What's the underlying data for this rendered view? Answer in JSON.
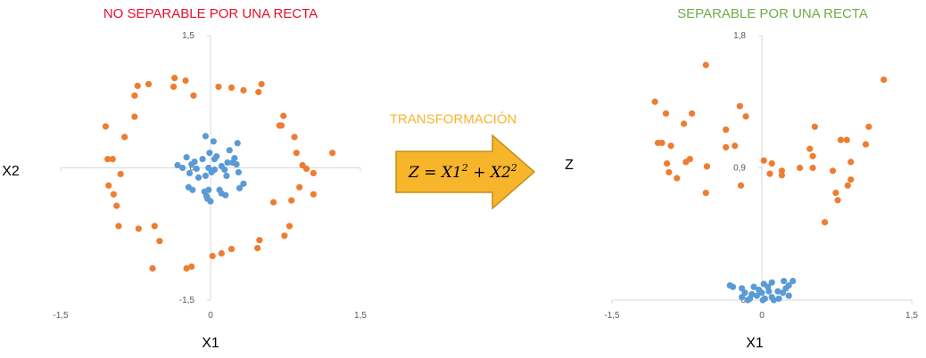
{
  "colors": {
    "title_left": "#e8102b",
    "title_right": "#70ad47",
    "title_middle": "#f7b52c",
    "series_outer": "#ed7d31",
    "series_inner": "#5b9bd5",
    "arrow_fill": "#f7b52c",
    "arrow_stroke": "#c39016",
    "axis_line": "#d9d9d9"
  },
  "arrow": {
    "title": "TRANSFORMACIÓN",
    "formula": {
      "lhs": "Z = X1",
      "exp1": "2",
      "mid": " + X2",
      "exp2": "2"
    }
  },
  "chart_data": [
    {
      "type": "scatter",
      "title": "NO SEPARABLE POR UNA RECTA",
      "xlabel": "X1",
      "ylabel": "X2",
      "xlim": [
        -1.5,
        1.5
      ],
      "ylim": [
        -1.5,
        1.5
      ],
      "x_ticks": [
        "-1,5",
        "0",
        "1,5"
      ],
      "y_ticks": [
        "-1,5",
        "0",
        "1,5"
      ],
      "x_tick_values": [
        -1.5,
        0,
        1.5
      ],
      "y_tick_values": [
        -1.5,
        0,
        1.5
      ],
      "grid": false,
      "series": [
        {
          "color": "#ed7d31",
          "points": [
            [
              -0.36,
              1.02
            ],
            [
              -0.25,
              0.99
            ],
            [
              -0.37,
              0.92
            ],
            [
              -0.73,
              0.93
            ],
            [
              -0.62,
              0.95
            ],
            [
              0.08,
              0.92
            ],
            [
              0.21,
              0.91
            ],
            [
              0.33,
              0.88
            ],
            [
              0.48,
              0.86
            ],
            [
              0.51,
              0.95
            ],
            [
              -0.76,
              0.82
            ],
            [
              -0.17,
              0.82
            ],
            [
              -0.76,
              0.58
            ],
            [
              -1.05,
              0.47
            ],
            [
              -0.86,
              0.35
            ],
            [
              0.73,
              0.59
            ],
            [
              0.69,
              0.48
            ],
            [
              0.71,
              0.48
            ],
            [
              0.84,
              0.35
            ],
            [
              0.86,
              0.17
            ],
            [
              1.22,
              0.17
            ],
            [
              -1.03,
              0.1
            ],
            [
              -0.98,
              0.1
            ],
            [
              -0.9,
              -0.07
            ],
            [
              -1.02,
              -0.2
            ],
            [
              -0.97,
              -0.3
            ],
            [
              0.92,
              0.03
            ],
            [
              0.96,
              -0.01
            ],
            [
              1.03,
              -0.06
            ],
            [
              0.89,
              -0.22
            ],
            [
              1.03,
              -0.3
            ],
            [
              -0.94,
              -0.43
            ],
            [
              -0.92,
              -0.66
            ],
            [
              -0.72,
              -0.69
            ],
            [
              -0.56,
              -0.66
            ],
            [
              -0.51,
              -0.83
            ],
            [
              0.63,
              -0.39
            ],
            [
              0.81,
              -0.37
            ],
            [
              0.79,
              -0.66
            ],
            [
              0.74,
              -0.77
            ],
            [
              0.49,
              -0.82
            ],
            [
              0.47,
              -0.91
            ],
            [
              0.21,
              -0.92
            ],
            [
              0.11,
              -0.97
            ],
            [
              0.02,
              -1.0
            ],
            [
              -0.19,
              -1.12
            ],
            [
              -0.24,
              -1.14
            ],
            [
              -0.58,
              -1.14
            ]
          ]
        },
        {
          "color": "#5b9bd5",
          "points": [
            [
              -0.05,
              0.36
            ],
            [
              0.03,
              0.3
            ],
            [
              0.27,
              0.28
            ],
            [
              0.19,
              0.2
            ],
            [
              0.06,
              0.13
            ],
            [
              0.24,
              0.11
            ],
            [
              -0.01,
              0.17
            ],
            [
              -0.08,
              0.1
            ],
            [
              0.04,
              0.1
            ],
            [
              -0.16,
              0.07
            ],
            [
              0.17,
              0.06
            ],
            [
              0.22,
              0.06
            ],
            [
              0.11,
              0.02
            ],
            [
              0.26,
              0.04
            ],
            [
              -0.33,
              0.03
            ],
            [
              -0.28,
              0.0
            ],
            [
              -0.19,
              0.04
            ],
            [
              -0.14,
              -0.01
            ],
            [
              -0.02,
              0.0
            ],
            [
              0.01,
              -0.05
            ],
            [
              0.04,
              -0.02
            ],
            [
              0.14,
              -0.02
            ],
            [
              -0.05,
              -0.09
            ],
            [
              -0.21,
              -0.06
            ],
            [
              -0.12,
              -0.11
            ],
            [
              0.16,
              -0.09
            ],
            [
              0.28,
              -0.05
            ],
            [
              0.33,
              -0.18
            ],
            [
              0.29,
              -0.23
            ],
            [
              -0.22,
              -0.22
            ],
            [
              -0.18,
              -0.25
            ],
            [
              -0.06,
              -0.27
            ],
            [
              0.09,
              -0.25
            ],
            [
              0.11,
              -0.29
            ],
            [
              0.15,
              -0.31
            ],
            [
              -0.04,
              -0.32
            ],
            [
              -0.02,
              -0.25
            ],
            [
              -0.03,
              -0.35
            ],
            [
              0.0,
              -0.38
            ],
            [
              -0.24,
              0.12
            ]
          ]
        }
      ]
    },
    {
      "type": "scatter",
      "title": "SEPARABLE POR UNA RECTA",
      "xlabel": "X1",
      "ylabel": "Z",
      "xlim": [
        -1.5,
        1.5
      ],
      "ylim": [
        0,
        1.8
      ],
      "x_ticks": [
        "-1,5",
        "0",
        "1,5"
      ],
      "y_ticks": [
        "0",
        "0,9",
        "1,8"
      ],
      "x_tick_values": [
        -1.5,
        0,
        1.5
      ],
      "y_tick_values": [
        0,
        0.9,
        1.8
      ],
      "grid": false,
      "series": [
        {
          "color": "#ed7d31",
          "points": [
            [
              -0.56,
              1.6
            ],
            [
              1.22,
              1.5
            ],
            [
              -1.07,
              1.35
            ],
            [
              -0.96,
              1.27
            ],
            [
              -0.7,
              1.27
            ],
            [
              -0.16,
              1.25
            ],
            [
              -0.22,
              1.32
            ],
            [
              -0.78,
              1.2
            ],
            [
              0.53,
              1.18
            ],
            [
              1.07,
              1.18
            ],
            [
              -0.36,
              1.16
            ],
            [
              -1.04,
              1.07
            ],
            [
              -1.0,
              1.07
            ],
            [
              -0.91,
              1.05
            ],
            [
              -0.36,
              1.04
            ],
            [
              -0.27,
              1.05
            ],
            [
              0.79,
              1.09
            ],
            [
              0.85,
              1.09
            ],
            [
              1.04,
              1.06
            ],
            [
              0.48,
              1.03
            ],
            [
              0.51,
              0.98
            ],
            [
              -0.76,
              0.94
            ],
            [
              -0.72,
              0.96
            ],
            [
              -0.55,
              0.91
            ],
            [
              -0.95,
              0.93
            ],
            [
              0.02,
              0.95
            ],
            [
              0.1,
              0.93
            ],
            [
              0.89,
              0.94
            ],
            [
              0.38,
              0.9
            ],
            [
              0.2,
              0.88
            ],
            [
              0.2,
              0.85
            ],
            [
              -0.85,
              0.83
            ],
            [
              -0.93,
              0.87
            ],
            [
              0.51,
              0.9
            ],
            [
              0.71,
              0.88
            ],
            [
              0.08,
              0.86
            ],
            [
              0.89,
              0.82
            ],
            [
              0.86,
              0.78
            ],
            [
              0.74,
              0.73
            ],
            [
              -0.21,
              0.78
            ],
            [
              -0.56,
              0.73
            ],
            [
              0.76,
              0.68
            ],
            [
              0.63,
              0.53
            ]
          ]
        },
        {
          "color": "#5b9bd5",
          "points": [
            [
              -0.32,
              0.1
            ],
            [
              -0.2,
              0.08
            ],
            [
              -0.08,
              0.09
            ],
            [
              0.02,
              0.11
            ],
            [
              0.1,
              0.12
            ],
            [
              0.22,
              0.13
            ],
            [
              0.31,
              0.13
            ],
            [
              0.27,
              0.1
            ],
            [
              -0.29,
              0.09
            ],
            [
              -0.17,
              0.05
            ],
            [
              -0.1,
              0.04
            ],
            [
              0.0,
              0.05
            ],
            [
              0.07,
              0.06
            ],
            [
              0.16,
              0.06
            ],
            [
              0.21,
              0.05
            ],
            [
              -0.2,
              0.02
            ],
            [
              -0.12,
              0.01
            ],
            [
              0.03,
              0.01
            ],
            [
              0.1,
              0.02
            ],
            [
              0.17,
              0.01
            ],
            [
              0.27,
              0.03
            ],
            [
              -0.05,
              0.03
            ],
            [
              0.01,
              0.0
            ],
            [
              -0.14,
              0.0
            ],
            [
              0.12,
              0.0
            ],
            [
              0.24,
              0.08
            ],
            [
              -0.03,
              0.07
            ],
            [
              0.06,
              0.09
            ]
          ]
        }
      ]
    }
  ]
}
